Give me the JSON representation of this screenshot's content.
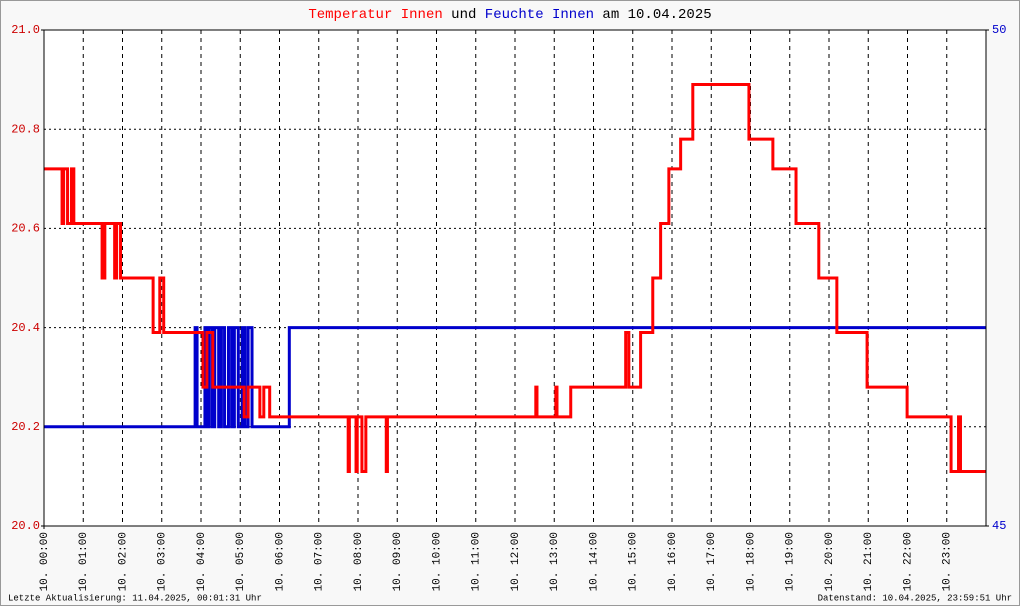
{
  "chart_data": {
    "type": "line",
    "title_connector": "und",
    "title_suffix": "am 10.04.2025",
    "footer_left": "Letzte Aktualisierung: 11.04.2025, 00:01:31 Uhr",
    "footer_right": "Datenstand: 10.04.2025, 23:59:51 Uhr",
    "xlim": [
      0,
      24
    ],
    "xticks": [
      {
        "value": 0,
        "label": "10. 00:00"
      },
      {
        "value": 1,
        "label": "10. 01:00"
      },
      {
        "value": 2,
        "label": "10. 02:00"
      },
      {
        "value": 3,
        "label": "10. 03:00"
      },
      {
        "value": 4,
        "label": "10. 04:00"
      },
      {
        "value": 5,
        "label": "10. 05:00"
      },
      {
        "value": 6,
        "label": "10. 06:00"
      },
      {
        "value": 7,
        "label": "10. 07:00"
      },
      {
        "value": 8,
        "label": "10. 08:00"
      },
      {
        "value": 9,
        "label": "10. 09:00"
      },
      {
        "value": 10,
        "label": "10. 10:00"
      },
      {
        "value": 11,
        "label": "10. 11:00"
      },
      {
        "value": 12,
        "label": "10. 12:00"
      },
      {
        "value": 13,
        "label": "10. 13:00"
      },
      {
        "value": 14,
        "label": "10. 14:00"
      },
      {
        "value": 15,
        "label": "10. 15:00"
      },
      {
        "value": 16,
        "label": "10. 16:00"
      },
      {
        "value": 17,
        "label": "10. 17:00"
      },
      {
        "value": 18,
        "label": "10. 18:00"
      },
      {
        "value": 19,
        "label": "10. 19:00"
      },
      {
        "value": 20,
        "label": "10. 20:00"
      },
      {
        "value": 21,
        "label": "10. 21:00"
      },
      {
        "value": 22,
        "label": "10. 22:00"
      },
      {
        "value": 23,
        "label": "10. 23:00"
      }
    ],
    "ylim": [
      20,
      21
    ],
    "yticks": [
      {
        "value": 20,
        "label": "20.0"
      },
      20.2,
      20.4,
      20.6,
      20.8,
      {
        "value": 21,
        "label": "21.0"
      }
    ],
    "y2lim": [
      45,
      50
    ],
    "y2ticks": [
      45,
      50
    ],
    "grid": true,
    "series": [
      {
        "name": "Feuchte Innen",
        "color": "#0000cc",
        "axis": "y2",
        "x": [
          0,
          3.85,
          3.85,
          3.9,
          3.9,
          4.1,
          4.1,
          4.15,
          4.15,
          4.2,
          4.2,
          4.28,
          4.28,
          4.35,
          4.35,
          4.45,
          4.45,
          4.52,
          4.52,
          4.6,
          4.6,
          4.7,
          4.7,
          4.78,
          4.78,
          4.85,
          4.85,
          4.95,
          4.95,
          5.05,
          5.05,
          5.12,
          5.12,
          5.2,
          5.2,
          5.3,
          5.3,
          6.25,
          6.25,
          24
        ],
        "values": [
          46,
          46,
          47,
          47,
          46,
          46,
          47,
          47,
          46,
          46,
          47,
          47,
          46,
          46,
          47,
          47,
          46,
          46,
          47,
          47,
          46,
          46,
          47,
          47,
          46,
          46,
          47,
          47,
          46,
          46,
          47,
          47,
          46,
          46,
          47,
          47,
          46,
          46,
          47,
          47
        ]
      },
      {
        "name": "Temperatur Innen",
        "color": "#ff0000",
        "x": [
          0,
          0.46,
          0.46,
          0.5,
          0.5,
          0.6,
          0.6,
          0.7,
          0.7,
          0.76,
          0.76,
          1.48,
          1.48,
          1.55,
          1.55,
          1.8,
          1.8,
          1.85,
          1.85,
          1.95,
          1.95,
          2.78,
          2.78,
          2.95,
          2.95,
          3.05,
          3.05,
          4.05,
          4.05,
          4.15,
          4.15,
          4.3,
          4.3,
          5.1,
          5.1,
          5.2,
          5.2,
          5.5,
          5.5,
          5.6,
          5.6,
          5.75,
          5.75,
          7.75,
          7.75,
          7.78,
          7.78,
          7.95,
          7.95,
          7.98,
          7.98,
          8.1,
          8.1,
          8.2,
          8.2,
          8.72,
          8.72,
          8.75,
          8.75,
          12.53,
          12.53,
          12.56,
          12.56,
          13.04,
          13.04,
          13.07,
          13.07,
          13.42,
          13.42,
          14.82,
          14.82,
          14.9,
          14.9,
          15.2,
          15.2,
          15.51,
          15.51,
          15.71,
          15.71,
          15.92,
          15.92,
          16.22,
          16.22,
          16.53,
          16.53,
          17.96,
          17.96,
          18.57,
          18.57,
          19.16,
          19.16,
          19.74,
          19.74,
          20.2,
          20.2,
          20.97,
          20.97,
          21.99,
          21.99,
          23.11,
          23.11,
          23.3,
          23.3,
          23.35,
          23.35,
          24
        ],
        "values": [
          20.72,
          20.72,
          20.61,
          20.61,
          20.72,
          20.72,
          20.61,
          20.61,
          20.72,
          20.72,
          20.61,
          20.61,
          20.5,
          20.5,
          20.61,
          20.61,
          20.5,
          20.5,
          20.61,
          20.61,
          20.5,
          20.5,
          20.39,
          20.39,
          20.5,
          20.5,
          20.39,
          20.39,
          20.28,
          20.28,
          20.39,
          20.39,
          20.28,
          20.28,
          20.22,
          20.22,
          20.28,
          20.28,
          20.22,
          20.22,
          20.28,
          20.28,
          20.22,
          20.22,
          20.11,
          20.11,
          20.22,
          20.22,
          20.11,
          20.11,
          20.22,
          20.22,
          20.11,
          20.11,
          20.22,
          20.22,
          20.11,
          20.11,
          20.22,
          20.22,
          20.28,
          20.28,
          20.22,
          20.22,
          20.28,
          20.28,
          20.22,
          20.22,
          20.28,
          20.28,
          20.39,
          20.39,
          20.28,
          20.28,
          20.39,
          20.39,
          20.5,
          20.5,
          20.61,
          20.61,
          20.72,
          20.72,
          20.78,
          20.78,
          20.89,
          20.89,
          20.78,
          20.78,
          20.72,
          20.72,
          20.61,
          20.61,
          20.5,
          20.5,
          20.39,
          20.39,
          20.28,
          20.28,
          20.22,
          20.22,
          20.11,
          20.11,
          20.22,
          20.22,
          20.11,
          20.11
        ]
      }
    ]
  }
}
